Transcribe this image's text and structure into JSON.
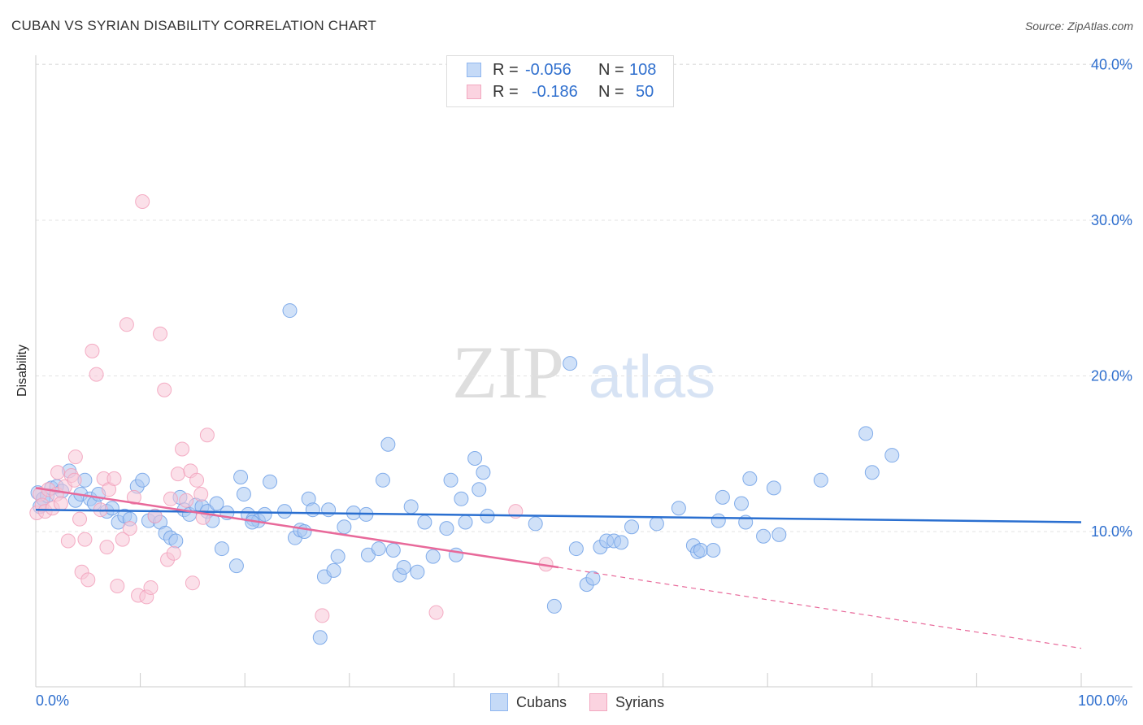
{
  "title": "CUBAN VS SYRIAN DISABILITY CORRELATION CHART",
  "source": "Source: ZipAtlas.com",
  "watermark": {
    "zip": "ZIP",
    "atlas": "atlas"
  },
  "legend_top": [
    {
      "r_label": "R =",
      "r_value": "-0.056",
      "n_label": "N =",
      "n_value": "108",
      "color": "#8fb6ef",
      "fill": "#c5daf7"
    },
    {
      "r_label": "R =",
      "r_value": "-0.186",
      "n_label": "N =",
      "n_value": "50",
      "color": "#f2a8c0",
      "fill": "#fbd3e0"
    }
  ],
  "legend_bottom": [
    "Cubans",
    "Syrians"
  ],
  "chart_data": {
    "type": "scatter",
    "xlabel": "",
    "ylabel": "Disability",
    "xlim": [
      0,
      100
    ],
    "ylim": [
      0,
      42
    ],
    "x_tick_labels": [
      "0.0%",
      "100.0%"
    ],
    "y_ticks": [
      10,
      20,
      30,
      40
    ],
    "y_tick_labels": [
      "10.0%",
      "20.0%",
      "30.0%",
      "40.0%"
    ],
    "grid": true,
    "legend_placement": "bottom",
    "series": [
      {
        "name": "Cubans",
        "color": "#6fa0e6",
        "fill": "#a9c8f2",
        "trend": {
          "x": [
            0,
            100
          ],
          "y": [
            11.4,
            10.6
          ],
          "color": "#2a6fd0"
        },
        "points": [
          [
            0.2,
            12.5
          ],
          [
            0.4,
            11.6
          ],
          [
            0.7,
            12.1
          ],
          [
            1.1,
            12.3
          ],
          [
            1.5,
            12.8
          ],
          [
            2.0,
            12.9
          ],
          [
            2.5,
            12.6
          ],
          [
            3.2,
            13.9
          ],
          [
            3.8,
            12.0
          ],
          [
            4.3,
            12.4
          ],
          [
            4.7,
            13.3
          ],
          [
            5.2,
            12.1
          ],
          [
            5.6,
            11.8
          ],
          [
            6.0,
            12.4
          ],
          [
            6.8,
            11.3
          ],
          [
            7.3,
            11.5
          ],
          [
            7.9,
            10.6
          ],
          [
            8.5,
            11.0
          ],
          [
            9.0,
            10.8
          ],
          [
            9.7,
            12.9
          ],
          [
            10.2,
            13.3
          ],
          [
            10.8,
            10.7
          ],
          [
            11.4,
            11.0
          ],
          [
            11.9,
            10.6
          ],
          [
            12.4,
            9.9
          ],
          [
            12.9,
            9.6
          ],
          [
            13.4,
            9.4
          ],
          [
            13.8,
            12.2
          ],
          [
            14.2,
            11.4
          ],
          [
            14.7,
            11.1
          ],
          [
            15.3,
            11.7
          ],
          [
            15.9,
            11.6
          ],
          [
            16.4,
            11.3
          ],
          [
            16.9,
            10.7
          ],
          [
            17.3,
            11.8
          ],
          [
            17.8,
            8.9
          ],
          [
            18.3,
            11.2
          ],
          [
            19.2,
            7.8
          ],
          [
            19.6,
            13.5
          ],
          [
            19.9,
            12.4
          ],
          [
            20.3,
            11.1
          ],
          [
            20.8,
            10.8
          ],
          [
            21.3,
            10.7
          ],
          [
            21.9,
            11.1
          ],
          [
            22.4,
            13.2
          ],
          [
            23.8,
            11.3
          ],
          [
            24.3,
            24.2
          ],
          [
            24.8,
            9.6
          ],
          [
            25.3,
            10.1
          ],
          [
            25.7,
            10.0
          ],
          [
            26.1,
            12.1
          ],
          [
            26.5,
            11.4
          ],
          [
            27.2,
            3.2
          ],
          [
            27.6,
            7.1
          ],
          [
            28.0,
            11.4
          ],
          [
            28.5,
            7.5
          ],
          [
            28.9,
            8.4
          ],
          [
            29.5,
            10.3
          ],
          [
            30.4,
            11.2
          ],
          [
            31.6,
            11.1
          ],
          [
            31.8,
            8.5
          ],
          [
            32.8,
            8.9
          ],
          [
            33.2,
            13.3
          ],
          [
            33.7,
            15.6
          ],
          [
            34.2,
            8.8
          ],
          [
            34.8,
            7.2
          ],
          [
            35.2,
            7.7
          ],
          [
            35.9,
            11.6
          ],
          [
            36.5,
            7.4
          ],
          [
            37.2,
            10.6
          ],
          [
            38.0,
            8.4
          ],
          [
            39.3,
            10.2
          ],
          [
            39.7,
            13.3
          ],
          [
            40.2,
            8.5
          ],
          [
            40.7,
            12.1
          ],
          [
            41.1,
            10.6
          ],
          [
            42.0,
            14.7
          ],
          [
            42.4,
            12.7
          ],
          [
            42.8,
            13.8
          ],
          [
            43.2,
            11.0
          ],
          [
            47.8,
            10.5
          ],
          [
            49.6,
            5.2
          ],
          [
            51.1,
            20.8
          ],
          [
            51.7,
            8.9
          ],
          [
            52.7,
            6.6
          ],
          [
            53.3,
            7.0
          ],
          [
            54.0,
            9.0
          ],
          [
            54.6,
            9.4
          ],
          [
            55.3,
            9.4
          ],
          [
            56.0,
            9.3
          ],
          [
            57.0,
            10.3
          ],
          [
            59.4,
            10.5
          ],
          [
            61.5,
            11.5
          ],
          [
            62.9,
            9.1
          ],
          [
            63.3,
            8.7
          ],
          [
            63.6,
            8.8
          ],
          [
            64.8,
            8.8
          ],
          [
            65.3,
            10.7
          ],
          [
            65.7,
            12.2
          ],
          [
            67.5,
            11.8
          ],
          [
            67.9,
            10.6
          ],
          [
            68.3,
            13.4
          ],
          [
            69.6,
            9.7
          ],
          [
            70.6,
            12.8
          ],
          [
            71.1,
            9.8
          ],
          [
            75.1,
            13.3
          ],
          [
            79.4,
            16.3
          ],
          [
            80.0,
            13.8
          ],
          [
            81.9,
            14.9
          ],
          [
            20.7,
            10.6
          ]
        ]
      },
      {
        "name": "Syrians",
        "color": "#f2a0bb",
        "fill": "#f8c6d7",
        "trend": {
          "x": [
            0,
            50
          ],
          "y": [
            12.8,
            7.7
          ],
          "color": "#e8699a"
        },
        "trend_dashed": {
          "x": [
            50,
            100
          ],
          "y": [
            7.7,
            2.5
          ]
        },
        "points": [
          [
            0.1,
            11.2
          ],
          [
            0.4,
            12.4
          ],
          [
            0.6,
            11.7
          ],
          [
            0.9,
            11.3
          ],
          [
            1.2,
            12.7
          ],
          [
            1.6,
            11.5
          ],
          [
            2.0,
            12.4
          ],
          [
            2.1,
            13.8
          ],
          [
            2.4,
            11.8
          ],
          [
            2.8,
            12.9
          ],
          [
            3.1,
            9.4
          ],
          [
            3.4,
            13.6
          ],
          [
            3.7,
            13.3
          ],
          [
            3.8,
            14.8
          ],
          [
            4.2,
            10.8
          ],
          [
            4.4,
            7.4
          ],
          [
            4.7,
            9.5
          ],
          [
            5.0,
            6.9
          ],
          [
            5.4,
            21.6
          ],
          [
            5.8,
            20.1
          ],
          [
            6.2,
            11.4
          ],
          [
            6.5,
            13.4
          ],
          [
            6.8,
            9.0
          ],
          [
            7.0,
            12.7
          ],
          [
            7.5,
            13.4
          ],
          [
            7.8,
            6.5
          ],
          [
            8.3,
            9.5
          ],
          [
            8.7,
            23.3
          ],
          [
            9.0,
            10.2
          ],
          [
            9.4,
            12.2
          ],
          [
            9.8,
            5.9
          ],
          [
            10.2,
            31.2
          ],
          [
            10.6,
            5.8
          ],
          [
            11.0,
            6.4
          ],
          [
            11.4,
            11.0
          ],
          [
            11.9,
            22.7
          ],
          [
            12.3,
            19.1
          ],
          [
            12.6,
            8.2
          ],
          [
            12.9,
            12.1
          ],
          [
            13.2,
            8.6
          ],
          [
            13.6,
            13.7
          ],
          [
            14.0,
            15.3
          ],
          [
            14.4,
            12.0
          ],
          [
            14.8,
            13.9
          ],
          [
            15.0,
            6.7
          ],
          [
            15.4,
            13.3
          ],
          [
            15.8,
            12.4
          ],
          [
            16.0,
            10.9
          ],
          [
            16.4,
            16.2
          ],
          [
            27.4,
            4.6
          ],
          [
            38.3,
            4.8
          ],
          [
            45.9,
            11.3
          ],
          [
            48.8,
            7.9
          ]
        ]
      }
    ]
  }
}
